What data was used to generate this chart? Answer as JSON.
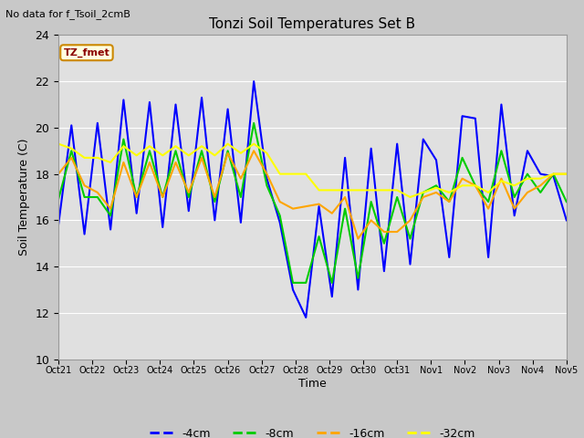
{
  "title": "Tonzi Soil Temperatures Set B",
  "xlabel": "Time",
  "ylabel": "Soil Temperature (C)",
  "note": "No data for f_Tsoil_2cmB",
  "legend_label": "TZ_fmet",
  "ylim": [
    10,
    24
  ],
  "yticks": [
    10,
    12,
    14,
    16,
    18,
    20,
    22,
    24
  ],
  "xtick_labels": [
    "Oct 21",
    "Oct 22",
    "Oct 23",
    "Oct 24",
    "Oct 25",
    "Oct 26",
    "Oct 27",
    "Oct 28",
    "Oct 29",
    "Oct 30",
    "Oct 31",
    "Nov 1",
    "Nov 2",
    "Nov 3",
    "Nov 4",
    "Nov 5"
  ],
  "colors": {
    "-4cm": "#0000FF",
    "-8cm": "#00CC00",
    "-16cm": "#FFA500",
    "-32cm": "#FFFF00"
  },
  "fig_bg_color": "#C8C8C8",
  "plot_bg_color": "#E0E0E0",
  "series": {
    "-4cm": [
      15.8,
      20.1,
      15.4,
      20.2,
      15.6,
      21.2,
      16.3,
      21.1,
      15.7,
      21.0,
      16.4,
      21.3,
      16.0,
      20.8,
      15.9,
      22.0,
      17.8,
      15.9,
      13.0,
      11.8,
      16.6,
      12.7,
      18.7,
      13.0,
      19.1,
      13.8,
      19.3,
      14.1,
      19.5,
      18.6,
      14.4,
      20.5,
      20.4,
      14.4,
      21.0,
      16.2,
      19.0,
      18.0,
      17.9,
      16.0
    ],
    "-8cm": [
      16.9,
      19.0,
      17.0,
      17.0,
      16.2,
      19.5,
      17.0,
      19.0,
      17.0,
      19.0,
      17.0,
      19.0,
      16.8,
      19.0,
      17.0,
      20.2,
      17.5,
      16.2,
      13.3,
      13.3,
      15.3,
      13.3,
      16.5,
      13.5,
      16.8,
      15.0,
      17.0,
      15.2,
      17.2,
      17.5,
      16.8,
      18.7,
      17.5,
      16.8,
      19.0,
      17.0,
      18.0,
      17.2,
      18.0,
      16.8
    ],
    "-16cm": [
      18.0,
      18.7,
      17.5,
      17.2,
      16.5,
      18.5,
      17.0,
      18.5,
      17.0,
      18.5,
      17.2,
      18.7,
      17.0,
      18.9,
      17.8,
      19.0,
      18.0,
      16.8,
      16.5,
      16.6,
      16.7,
      16.3,
      17.0,
      15.2,
      16.0,
      15.5,
      15.5,
      16.0,
      17.0,
      17.2,
      16.8,
      17.8,
      17.5,
      16.5,
      17.8,
      16.5,
      17.2,
      17.5,
      18.0,
      18.0
    ],
    "-32cm": [
      19.3,
      19.1,
      18.7,
      18.7,
      18.5,
      19.2,
      18.8,
      19.2,
      18.8,
      19.2,
      18.8,
      19.2,
      18.8,
      19.3,
      18.9,
      19.3,
      18.9,
      18.0,
      18.0,
      18.0,
      17.3,
      17.3,
      17.3,
      17.3,
      17.3,
      17.3,
      17.3,
      17.0,
      17.2,
      17.4,
      17.2,
      17.5,
      17.5,
      17.2,
      17.7,
      17.5,
      17.8,
      17.8,
      18.0,
      18.0
    ]
  }
}
